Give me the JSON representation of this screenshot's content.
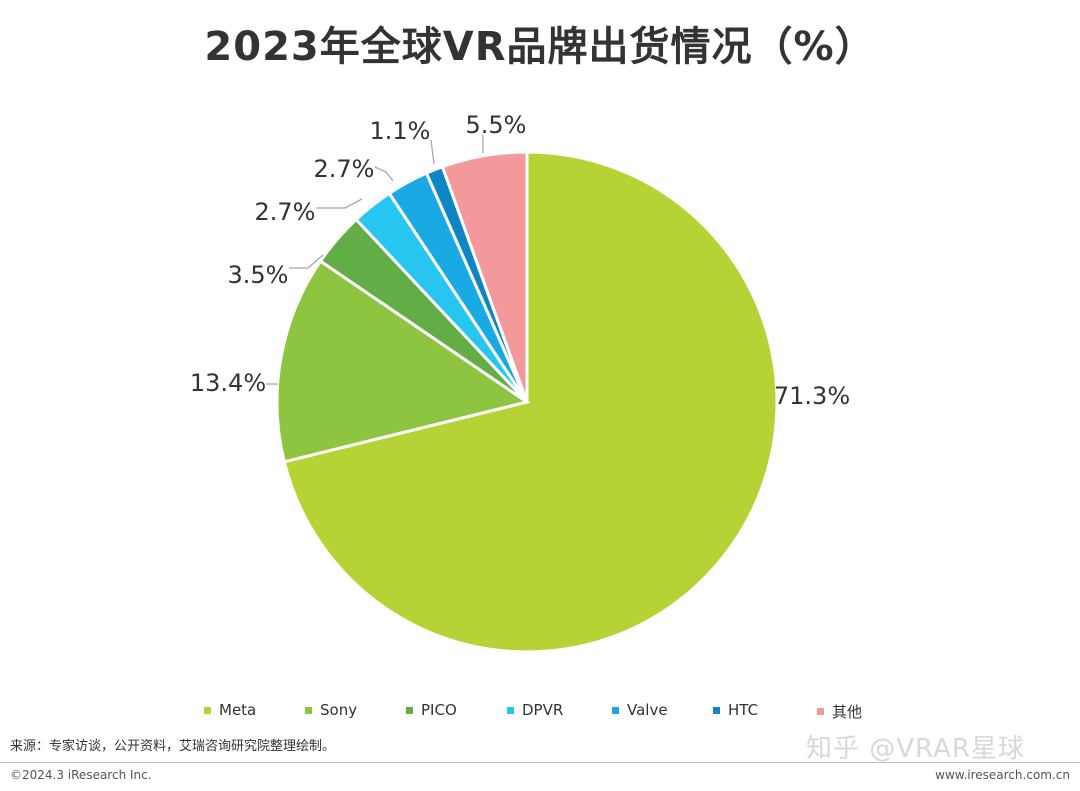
{
  "title": "2023年全球VR品牌出货情况（%）",
  "source_note": "来源：专家访谈，公开资料，艾瑞咨询研究院整理绘制。",
  "watermark": "知乎 @VRAR星球",
  "footer": {
    "copyright": "©2024.3 iResearch Inc.",
    "website": "www.iresearch.com.cn"
  },
  "chart_data": {
    "type": "pie",
    "title": "2023年全球VR品牌出货情况（%）",
    "unit": "%",
    "start_angle_deg": 0,
    "direction": "clockwise",
    "legend_position": "bottom",
    "slices": [
      {
        "name": "Meta",
        "value": 71.3,
        "label": "71.3%",
        "color": "#b5d334"
      },
      {
        "name": "Sony",
        "value": 13.4,
        "label": "13.4%",
        "color": "#8dc540"
      },
      {
        "name": "PICO",
        "value": 3.5,
        "label": "3.5%",
        "color": "#63ad47"
      },
      {
        "name": "DPVR",
        "value": 2.7,
        "label": "2.7%",
        "color": "#26c6f0"
      },
      {
        "name": "Valve",
        "value": 2.7,
        "label": "2.7%",
        "color": "#1aaae3"
      },
      {
        "name": "HTC",
        "value": 1.1,
        "label": "1.1%",
        "color": "#0e86c4"
      },
      {
        "name": "其他",
        "value": 5.5,
        "label": "5.5%",
        "color": "#f4999b"
      }
    ]
  }
}
